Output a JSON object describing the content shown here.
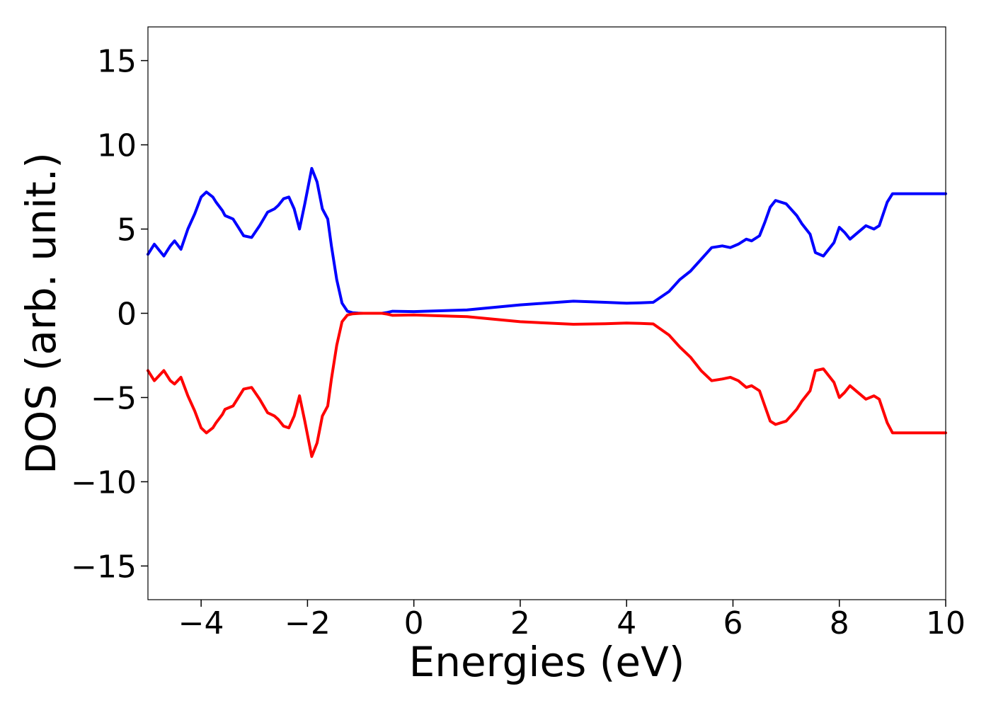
{
  "chart_data": {
    "type": "line",
    "title": "",
    "xlabel": "Energies (eV)",
    "ylabel": "DOS (arb. unit.)",
    "xlim": [
      -5,
      10
    ],
    "ylim": [
      -17,
      17
    ],
    "grid": false,
    "x_ticks": [
      -4,
      -2,
      0,
      2,
      4,
      6,
      8,
      10
    ],
    "x_tick_labels": [
      "−4",
      "−2",
      "0",
      "2",
      "4",
      "6",
      "8",
      "10"
    ],
    "y_ticks": [
      -15,
      -10,
      -5,
      0,
      5,
      10,
      15
    ],
    "y_tick_labels": [
      "−15",
      "−10",
      "−5",
      "0",
      "5",
      "10",
      "15"
    ],
    "series": [
      {
        "color": "#0000ff",
        "x": [
          -5.0,
          -4.88,
          -4.7,
          -4.58,
          -4.5,
          -4.38,
          -4.25,
          -4.12,
          -4.0,
          -3.9,
          -3.78,
          -3.72,
          -3.6,
          -3.55,
          -3.4,
          -3.3,
          -3.2,
          -3.05,
          -2.9,
          -2.75,
          -2.62,
          -2.55,
          -2.45,
          -2.35,
          -2.25,
          -2.15,
          -2.05,
          -1.92,
          -1.82,
          -1.72,
          -1.62,
          -1.55,
          -1.45,
          -1.35,
          -1.25,
          -1.15,
          -1.05,
          -0.95,
          -0.88,
          -0.8,
          -0.7,
          -0.6,
          -0.5,
          -0.4,
          0.0,
          1.0,
          2.0,
          3.0,
          3.6,
          4.0,
          4.25,
          4.5,
          4.8,
          5.0,
          5.2,
          5.4,
          5.6,
          5.8,
          5.95,
          6.1,
          6.25,
          6.35,
          6.5,
          6.6,
          6.7,
          6.8,
          7.0,
          7.2,
          7.3,
          7.45,
          7.55,
          7.7,
          7.9,
          8.0,
          8.1,
          8.2,
          8.35,
          8.5,
          8.65,
          8.75,
          8.9,
          9.0,
          9.1,
          9.2,
          9.3,
          9.45,
          9.55,
          9.65,
          9.75,
          9.85,
          9.95,
          10.0
        ],
        "y": [
          3.5,
          4.1,
          3.4,
          4.0,
          4.3,
          3.8,
          5.0,
          5.9,
          6.9,
          7.2,
          6.9,
          6.6,
          6.1,
          5.8,
          5.6,
          5.1,
          4.6,
          4.5,
          5.2,
          6.0,
          6.2,
          6.4,
          6.8,
          6.9,
          6.2,
          5.0,
          6.5,
          8.6,
          7.8,
          6.2,
          5.6,
          4.0,
          2.0,
          0.6,
          0.12,
          0.03,
          0.01,
          0.0,
          0.0,
          0.0,
          0.0,
          0.0,
          0.05,
          0.12,
          0.1,
          0.2,
          0.5,
          0.72,
          0.65,
          0.6,
          0.62,
          0.65,
          1.3,
          2.0,
          2.5,
          3.2,
          3.9,
          4.0,
          3.9,
          4.1,
          4.4,
          4.3,
          4.6,
          5.4,
          6.3,
          6.7,
          6.5,
          5.8,
          5.3,
          4.7,
          3.6,
          3.4,
          4.2,
          5.1,
          4.8,
          4.4,
          4.8,
          5.2,
          5.0,
          5.2,
          6.6,
          7.1,
          7.1,
          7.1,
          7.1,
          7.1,
          7.1,
          7.1,
          7.1,
          7.1,
          7.1,
          7.1
        ]
      },
      {
        "color": "#ff0000",
        "x": [
          -5.0,
          -4.88,
          -4.7,
          -4.58,
          -4.5,
          -4.38,
          -4.25,
          -4.12,
          -4.0,
          -3.9,
          -3.78,
          -3.72,
          -3.6,
          -3.55,
          -3.4,
          -3.3,
          -3.2,
          -3.05,
          -2.9,
          -2.75,
          -2.62,
          -2.55,
          -2.45,
          -2.35,
          -2.25,
          -2.15,
          -2.05,
          -1.92,
          -1.82,
          -1.72,
          -1.62,
          -1.55,
          -1.45,
          -1.35,
          -1.25,
          -1.15,
          -1.05,
          -0.95,
          -0.88,
          -0.8,
          -0.7,
          -0.6,
          -0.5,
          -0.4,
          0.0,
          1.0,
          2.0,
          3.0,
          3.6,
          4.0,
          4.25,
          4.5,
          4.8,
          5.0,
          5.2,
          5.4,
          5.6,
          5.8,
          5.95,
          6.1,
          6.25,
          6.35,
          6.5,
          6.6,
          6.7,
          6.8,
          7.0,
          7.2,
          7.3,
          7.45,
          7.55,
          7.7,
          7.9,
          8.0,
          8.1,
          8.2,
          8.35,
          8.5,
          8.65,
          8.75,
          8.9,
          9.0,
          9.1,
          9.2,
          9.3,
          9.45,
          9.55,
          9.65,
          9.75,
          9.85,
          9.95,
          10.0
        ],
        "y": [
          -3.4,
          -4.0,
          -3.4,
          -4.0,
          -4.2,
          -3.8,
          -4.9,
          -5.8,
          -6.8,
          -7.1,
          -6.8,
          -6.5,
          -6.0,
          -5.7,
          -5.5,
          -5.0,
          -4.5,
          -4.4,
          -5.1,
          -5.9,
          -6.1,
          -6.3,
          -6.7,
          -6.8,
          -6.1,
          -4.9,
          -6.4,
          -8.5,
          -7.7,
          -6.1,
          -5.5,
          -3.9,
          -1.9,
          -0.5,
          -0.1,
          -0.03,
          -0.01,
          0.0,
          0.0,
          0.0,
          0.0,
          0.0,
          -0.05,
          -0.12,
          -0.1,
          -0.2,
          -0.5,
          -0.65,
          -0.62,
          -0.58,
          -0.6,
          -0.63,
          -1.3,
          -2.0,
          -2.6,
          -3.4,
          -4.0,
          -3.9,
          -3.8,
          -4.0,
          -4.4,
          -4.3,
          -4.6,
          -5.5,
          -6.4,
          -6.6,
          -6.4,
          -5.7,
          -5.2,
          -4.6,
          -3.4,
          -3.3,
          -4.1,
          -5.0,
          -4.7,
          -4.3,
          -4.7,
          -5.1,
          -4.9,
          -5.1,
          -6.5,
          -7.1,
          -7.1,
          -7.1,
          -7.1,
          -7.1,
          -7.1,
          -7.1,
          -7.1,
          -7.1,
          -7.1,
          -7.1
        ]
      }
    ]
  }
}
